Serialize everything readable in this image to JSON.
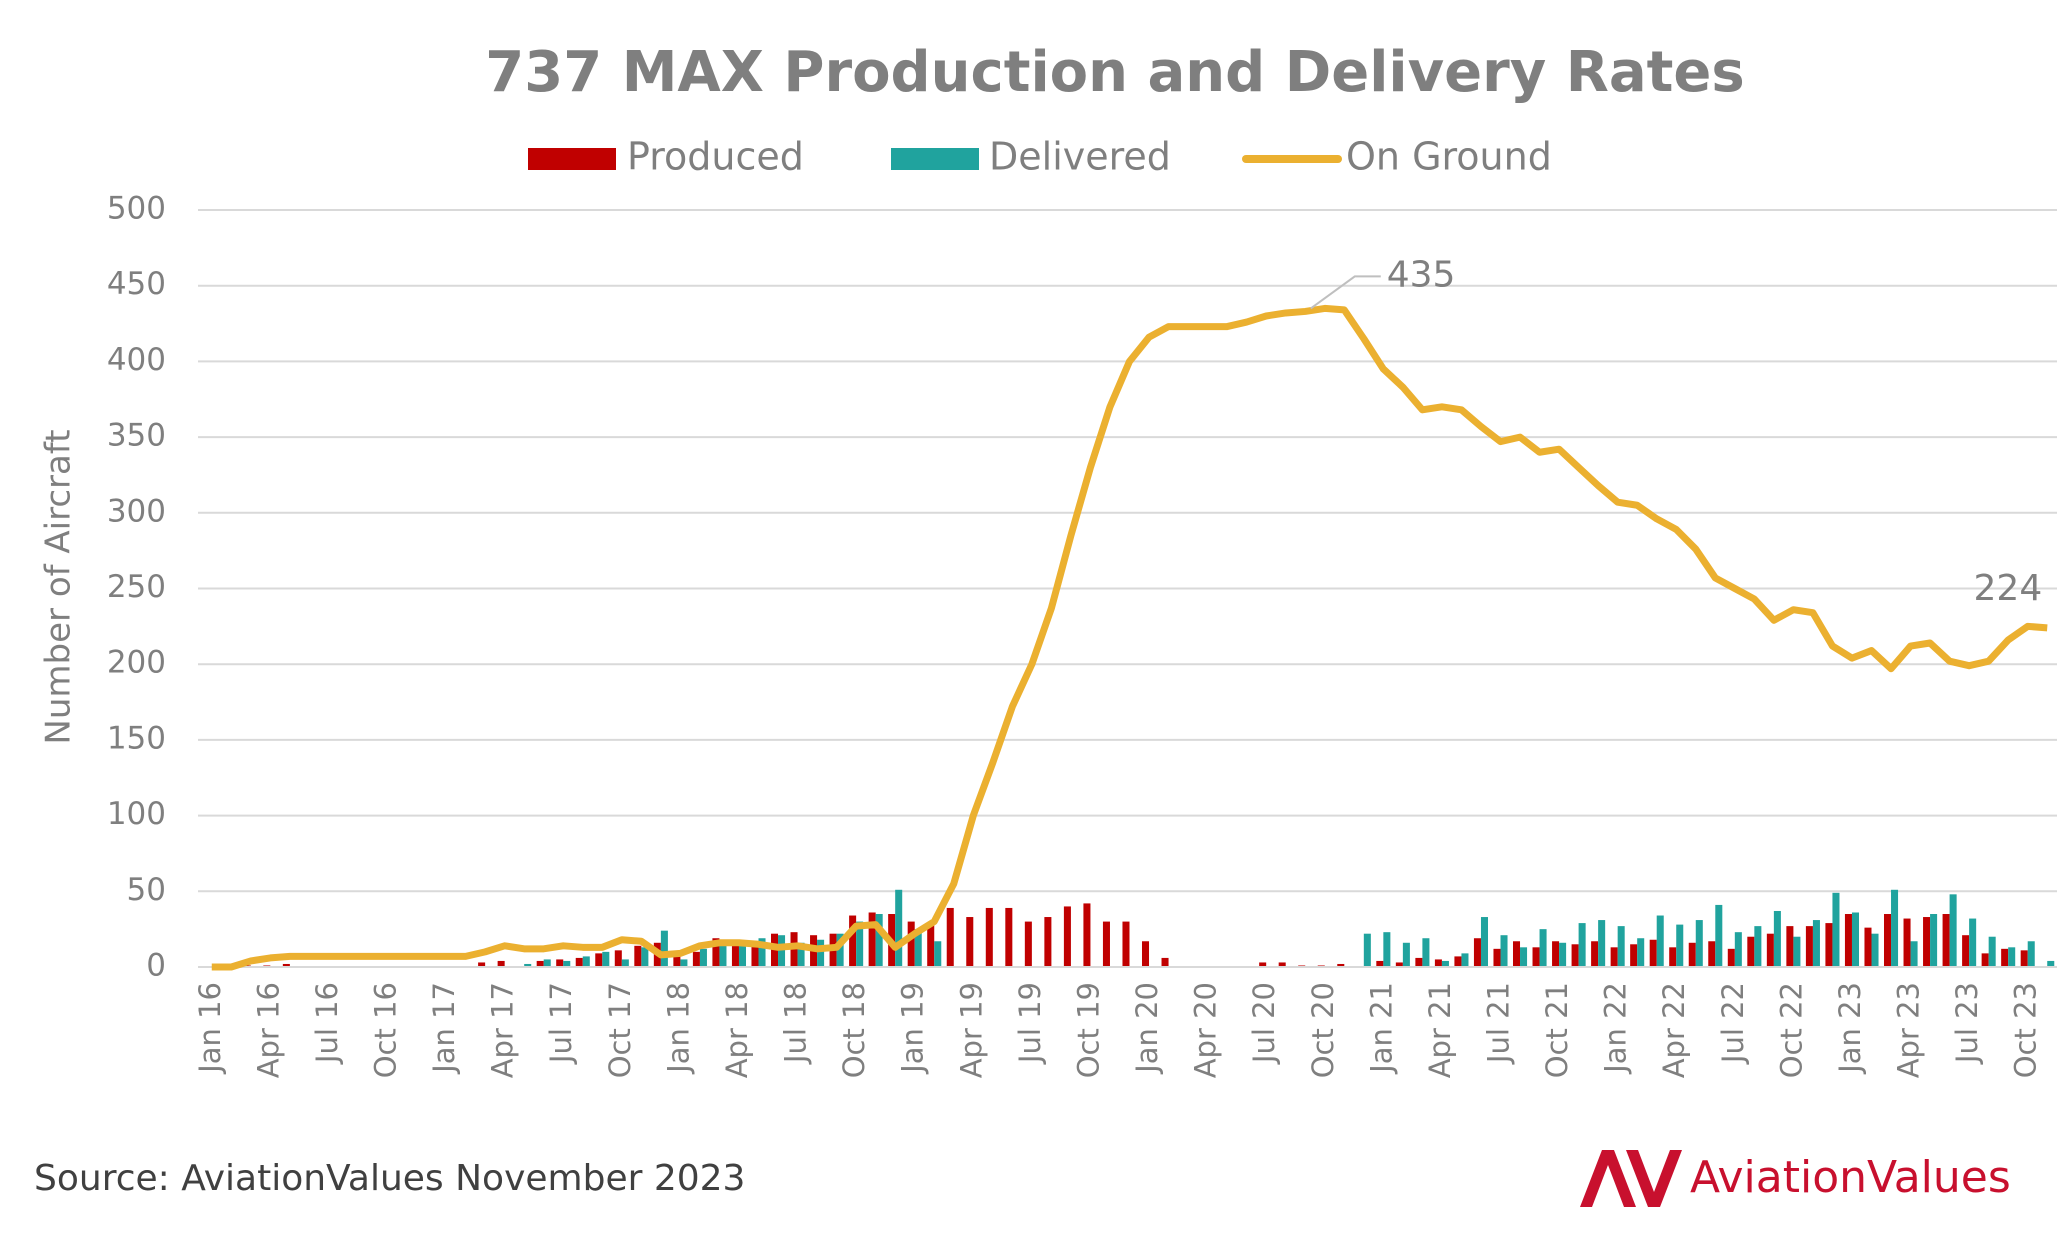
{
  "chart_data": {
    "type": "bar",
    "title": "737 MAX Production and Delivery Rates",
    "y_label": "Number of Aircraft",
    "source": "Source: AviationValues November 2023",
    "logo": "AviationValues",
    "categories": [
      "Jan 16",
      null,
      null,
      "Apr 16",
      null,
      null,
      "Jul 16",
      null,
      null,
      "Oct 16",
      null,
      null,
      "Jan 17",
      null,
      null,
      "Apr 17",
      null,
      null,
      "Jul 17",
      null,
      null,
      "Oct 17",
      null,
      null,
      "Jan 18",
      null,
      null,
      "Apr 18",
      null,
      null,
      "Jul 18",
      null,
      null,
      "Oct 18",
      null,
      null,
      "Jan 19",
      null,
      null,
      "Apr 19",
      null,
      null,
      "Jul 19",
      null,
      null,
      "Oct 19",
      null,
      null,
      "Jan 20",
      null,
      null,
      "Apr 20",
      null,
      null,
      "Jul 20",
      null,
      null,
      "Oct 20",
      null,
      null,
      "Jan 21",
      null,
      null,
      "Apr 21",
      null,
      null,
      "Jul 21",
      null,
      null,
      "Oct 21",
      null,
      null,
      "Jan 22",
      null,
      null,
      "Apr 22",
      null,
      null,
      "Jul 22",
      null,
      null,
      "Oct 22",
      null,
      null,
      "Jan 23",
      null,
      null,
      "Apr 23",
      null,
      null,
      "Jul 23",
      null,
      null,
      "Oct 23",
      null
    ],
    "series": [
      {
        "name": "Produced",
        "type": "bar",
        "color": "#c00000",
        "values": [
          0,
          0,
          1,
          1,
          2,
          0,
          0,
          0,
          0,
          0,
          0,
          0,
          0,
          0,
          3,
          4,
          0,
          4,
          5,
          6,
          9,
          11,
          14,
          16,
          8,
          10,
          19,
          18,
          16,
          22,
          23,
          21,
          22,
          34,
          36,
          35,
          30,
          28,
          39,
          33,
          39,
          39,
          30,
          33,
          40,
          42,
          30,
          30,
          17,
          6,
          0,
          0,
          0,
          0,
          3,
          3,
          1,
          1,
          2,
          0,
          4,
          3,
          6,
          5,
          7,
          19,
          12,
          17,
          13,
          17,
          15,
          17,
          13,
          15,
          18,
          13,
          16,
          17,
          12,
          20,
          22,
          27,
          27,
          29,
          35,
          26,
          35,
          32,
          33,
          35,
          21,
          9,
          12,
          11,
          0
        ]
      },
      {
        "name": "Delivered",
        "type": "bar",
        "color": "#20a39e",
        "values": [
          0,
          0,
          0,
          0,
          0,
          0,
          0,
          0,
          0,
          0,
          0,
          0,
          0,
          0,
          0,
          0,
          2,
          5,
          4,
          7,
          10,
          5,
          13,
          24,
          5,
          12,
          18,
          17,
          19,
          21,
          16,
          18,
          22,
          30,
          35,
          51,
          25,
          17,
          0,
          0,
          0,
          0,
          0,
          0,
          0,
          0,
          0,
          0,
          0,
          0,
          0,
          0,
          0,
          0,
          0,
          0,
          0,
          0,
          0,
          22,
          23,
          16,
          19,
          4,
          9,
          33,
          21,
          13,
          25,
          16,
          29,
          31,
          27,
          19,
          34,
          28,
          31,
          41,
          23,
          27,
          37,
          20,
          31,
          49,
          36,
          22,
          51,
          17,
          35,
          48,
          32,
          20,
          13,
          17,
          4
        ]
      },
      {
        "name": "On Ground",
        "type": "line",
        "color": "#ebb030",
        "values": [
          0,
          0,
          4,
          6,
          7,
          7,
          7,
          7,
          7,
          7,
          7,
          7,
          7,
          7,
          10,
          14,
          12,
          12,
          14,
          13,
          13,
          18,
          17,
          8,
          9,
          14,
          16,
          16,
          15,
          13,
          14,
          12,
          13,
          27,
          28,
          13,
          22,
          30,
          55,
          100,
          135,
          172,
          200,
          237,
          285,
          330,
          370,
          400,
          416,
          423,
          423,
          423,
          423,
          426,
          430,
          432,
          433,
          435,
          434,
          415,
          395,
          383,
          368,
          370,
          368,
          357,
          347,
          350,
          340,
          342,
          330,
          318,
          307,
          305,
          296,
          289,
          276,
          257,
          250,
          243,
          229,
          236,
          234,
          212,
          204,
          209,
          197,
          212,
          214,
          202,
          199,
          202,
          216,
          225,
          224
        ]
      }
    ],
    "ylim": [
      0,
      500
    ],
    "yticks": [
      0,
      50,
      100,
      150,
      200,
      250,
      300,
      350,
      400,
      450,
      500
    ],
    "grid": true
  }
}
